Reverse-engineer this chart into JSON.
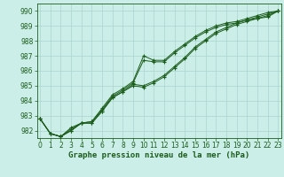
{
  "xlabel": "Graphe pression niveau de la mer (hPa)",
  "ylim": [
    981.5,
    990.5
  ],
  "xlim": [
    -0.3,
    23.3
  ],
  "yticks": [
    982,
    983,
    984,
    985,
    986,
    987,
    988,
    989,
    990
  ],
  "xticks": [
    0,
    1,
    2,
    3,
    4,
    5,
    6,
    7,
    8,
    9,
    10,
    11,
    12,
    13,
    14,
    15,
    16,
    17,
    18,
    19,
    20,
    21,
    22,
    23
  ],
  "background_color": "#cceee8",
  "grid_color": "#aad4ce",
  "line_color": "#1a5c1a",
  "lines": [
    [
      982.8,
      981.8,
      981.6,
      982.0,
      982.5,
      982.5,
      983.3,
      984.2,
      984.6,
      985.0,
      984.9,
      985.2,
      985.6,
      986.2,
      986.8,
      987.5,
      988.0,
      988.5,
      988.8,
      989.1,
      989.3,
      989.5,
      989.6,
      990.0
    ],
    [
      982.8,
      981.8,
      981.6,
      982.0,
      982.5,
      982.5,
      983.3,
      984.2,
      984.6,
      985.1,
      985.0,
      985.3,
      985.7,
      986.3,
      986.9,
      987.6,
      988.1,
      988.6,
      988.9,
      989.2,
      989.4,
      989.5,
      989.7,
      990.0
    ],
    [
      982.8,
      981.8,
      981.6,
      982.1,
      982.5,
      982.6,
      983.4,
      984.3,
      984.7,
      985.2,
      986.7,
      986.6,
      986.6,
      987.2,
      987.7,
      988.2,
      988.6,
      988.9,
      989.1,
      989.2,
      989.4,
      989.6,
      989.8,
      990.0
    ],
    [
      982.8,
      981.8,
      981.6,
      982.2,
      982.5,
      982.6,
      983.5,
      984.4,
      984.8,
      985.3,
      987.0,
      986.7,
      986.7,
      987.3,
      987.8,
      988.3,
      988.7,
      989.0,
      989.2,
      989.3,
      989.5,
      989.7,
      989.9,
      990.0
    ]
  ],
  "xlabel_fontsize": 6.5,
  "tick_fontsize": 5.5
}
